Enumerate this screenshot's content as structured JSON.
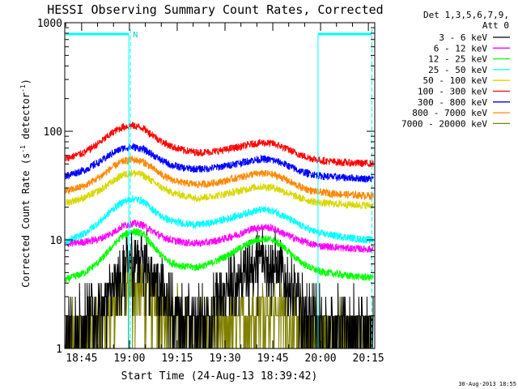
{
  "chart_data": {
    "type": "line",
    "title": "HESSI Observing Summary Count Rates, Corrected",
    "xlabel": "Start Time (24-Aug-13 18:39:42)",
    "ylabel_parts": [
      "Corrected Count Rate (s",
      "-1",
      " detector",
      "-1",
      ")"
    ],
    "footer": "30-Aug-2013 18:55",
    "x_range_min": [
      1119.7,
      1217.0
    ],
    "y_scale": "log",
    "ylim": [
      1,
      1000
    ],
    "x_ticks": [
      {
        "min": 1125,
        "label": "18:45"
      },
      {
        "min": 1140,
        "label": "19:00"
      },
      {
        "min": 1155,
        "label": "19:15"
      },
      {
        "min": 1170,
        "label": "19:30"
      },
      {
        "min": 1185,
        "label": "19:45"
      },
      {
        "min": 1200,
        "label": "20:00"
      },
      {
        "min": 1215,
        "label": "20:15"
      }
    ],
    "y_ticks": [
      {
        "value": 1,
        "label": "1"
      },
      {
        "value": 10,
        "label": "10"
      },
      {
        "value": 100,
        "label": "100"
      },
      {
        "value": 1000,
        "label": "1000"
      }
    ],
    "legend_header": [
      "Det 1,3,5,6,7,9,",
      "Att 0"
    ],
    "legend_position": "right",
    "night_segments": [
      [
        1120,
        1139.8
      ],
      [
        1199.2,
        1216.0
      ]
    ],
    "night_vlines": [
      1139.8,
      1199.2
    ],
    "dashed_vlines": [
      1140.3,
      1216.1
    ],
    "night_marker": {
      "min": 1140.6,
      "label": "N"
    },
    "series": [
      {
        "name": "3 - 6 keV",
        "color": "#000000",
        "style": "steps",
        "x": [
          1120,
          1126,
          1131,
          1135,
          1138,
          1141,
          1144,
          1147,
          1150,
          1153,
          1157,
          1161,
          1165,
          1170,
          1175,
          1179,
          1182,
          1185,
          1188,
          1191,
          1194,
          1197,
          1200,
          1204,
          1208,
          1212,
          1216
        ],
        "y": [
          1.5,
          1.9,
          2.5,
          3.5,
          5,
          7,
          7.5,
          5.5,
          3.5,
          2.5,
          2,
          1.9,
          2.2,
          3.2,
          5,
          6.5,
          7,
          6.5,
          5,
          3.5,
          2.5,
          2,
          1.8,
          1.7,
          1.6,
          1.6,
          1.6
        ]
      },
      {
        "name": "6 - 12 keV",
        "color": "#ff00ff",
        "style": "noisy",
        "x": [
          1120,
          1126,
          1131,
          1135,
          1138,
          1141,
          1144,
          1147,
          1150,
          1153,
          1157,
          1161,
          1165,
          1170,
          1175,
          1179,
          1182,
          1185,
          1188,
          1191,
          1194,
          1197,
          1200,
          1204,
          1208,
          1212,
          1216
        ],
        "y": [
          9.2,
          9.6,
          10.3,
          11.8,
          13.5,
          14.2,
          13.8,
          12.2,
          10.8,
          10,
          9.5,
          9.3,
          9.5,
          10.3,
          11.5,
          12.8,
          13.2,
          12.8,
          11.6,
          10.6,
          9.8,
          9.2,
          8.8,
          8.6,
          8.4,
          8.3,
          8.2
        ]
      },
      {
        "name": "12 - 25 keV",
        "color": "#00ff00",
        "style": "noisy",
        "x": [
          1120,
          1126,
          1131,
          1135,
          1138,
          1141,
          1144,
          1147,
          1150,
          1153,
          1157,
          1161,
          1165,
          1170,
          1175,
          1179,
          1182,
          1185,
          1188,
          1191,
          1194,
          1197,
          1200,
          1204,
          1208,
          1212,
          1216
        ],
        "y": [
          4.3,
          5,
          6.5,
          9,
          11,
          12,
          11.5,
          9,
          7.2,
          6.2,
          5.7,
          5.6,
          6,
          7,
          8.5,
          9.8,
          10.3,
          10,
          8.8,
          7.3,
          6.2,
          5.5,
          5.1,
          4.9,
          4.7,
          4.6,
          4.5
        ]
      },
      {
        "name": "25 - 50 keV",
        "color": "#00ffff",
        "style": "noisy",
        "x": [
          1120,
          1126,
          1131,
          1135,
          1138,
          1141,
          1144,
          1147,
          1150,
          1153,
          1157,
          1161,
          1165,
          1170,
          1175,
          1179,
          1182,
          1185,
          1188,
          1191,
          1194,
          1197,
          1200,
          1204,
          1208,
          1212,
          1216
        ],
        "y": [
          9.5,
          11.5,
          15,
          19.5,
          22.5,
          24,
          23,
          19.5,
          16.5,
          15,
          14.2,
          13.8,
          14.2,
          15.5,
          17,
          18.5,
          19,
          18.5,
          17,
          15,
          13.5,
          12.3,
          11.5,
          11,
          10.6,
          10.2,
          10
        ]
      },
      {
        "name": "50 - 100 keV",
        "color": "#d8d800",
        "style": "noisy",
        "x": [
          1120,
          1126,
          1131,
          1135,
          1138,
          1141,
          1144,
          1147,
          1150,
          1153,
          1157,
          1161,
          1165,
          1170,
          1175,
          1179,
          1182,
          1185,
          1188,
          1191,
          1194,
          1197,
          1200,
          1204,
          1208,
          1212,
          1216
        ],
        "y": [
          22,
          24.5,
          29,
          35,
          40,
          41.5,
          40,
          35,
          30.5,
          27.5,
          25.5,
          24.5,
          25,
          26.5,
          28.5,
          30.5,
          31,
          30.5,
          28.5,
          26,
          24,
          22.8,
          22,
          21.5,
          21.2,
          21,
          20.8
        ]
      },
      {
        "name": "100 - 300 keV",
        "color": "#ff0000",
        "style": "noisy",
        "x": [
          1120,
          1126,
          1131,
          1135,
          1138,
          1141,
          1144,
          1147,
          1150,
          1153,
          1157,
          1161,
          1165,
          1170,
          1175,
          1179,
          1182,
          1185,
          1188,
          1191,
          1194,
          1197,
          1200,
          1204,
          1208,
          1212,
          1216
        ],
        "y": [
          56,
          64,
          80,
          99,
          110,
          113,
          108,
          94,
          81,
          73,
          67,
          64,
          64.5,
          67.5,
          72.5,
          77,
          78.5,
          77,
          72,
          65.5,
          60,
          56.5,
          54,
          52.5,
          51.5,
          51,
          50.5
        ]
      },
      {
        "name": "300 - 800 keV",
        "color": "#0000ff",
        "style": "noisy",
        "x": [
          1120,
          1126,
          1131,
          1135,
          1138,
          1141,
          1144,
          1147,
          1150,
          1153,
          1157,
          1161,
          1165,
          1170,
          1175,
          1179,
          1182,
          1185,
          1188,
          1191,
          1194,
          1197,
          1200,
          1204,
          1208,
          1212,
          1216
        ],
        "y": [
          39,
          44,
          53,
          64,
          70,
          72,
          69,
          62,
          54,
          49,
          46,
          45,
          45.5,
          48,
          51.5,
          54.5,
          55.5,
          54.5,
          51,
          46.5,
          42.5,
          40.5,
          39,
          38,
          37.5,
          37,
          36.5
        ]
      },
      {
        "name": "800 - 7000 keV",
        "color": "#ff8800",
        "style": "noisy",
        "x": [
          1120,
          1126,
          1131,
          1135,
          1138,
          1141,
          1144,
          1147,
          1150,
          1153,
          1157,
          1161,
          1165,
          1170,
          1175,
          1179,
          1182,
          1185,
          1188,
          1191,
          1194,
          1197,
          1200,
          1204,
          1208,
          1212,
          1216
        ],
        "y": [
          28,
          31.5,
          38.5,
          47.5,
          53,
          55,
          53,
          46.5,
          40,
          36,
          33.5,
          32.5,
          33,
          35,
          38,
          40.5,
          41,
          40,
          37.5,
          33.5,
          30.5,
          28.5,
          27.5,
          26.8,
          26.2,
          25.8,
          25.5
        ]
      },
      {
        "name": "7000 - 20000 keV",
        "color": "#808000",
        "style": "steps",
        "x": [
          1120,
          1126,
          1131,
          1135,
          1138,
          1141,
          1144,
          1147,
          1150,
          1153,
          1157,
          1161,
          1165,
          1170,
          1175,
          1179,
          1182,
          1185,
          1188,
          1191,
          1194,
          1197,
          1200,
          1204,
          1208,
          1212,
          1216
        ],
        "y": [
          1.2,
          1.4,
          1.8,
          2.6,
          3.4,
          3.8,
          3.6,
          3,
          2.4,
          2,
          1.7,
          1.5,
          1.5,
          1.6,
          1.9,
          2.3,
          2.5,
          2.4,
          2.1,
          1.8,
          1.5,
          1.35,
          1.3,
          1.3,
          1.3,
          1.3,
          1.3
        ]
      }
    ]
  }
}
